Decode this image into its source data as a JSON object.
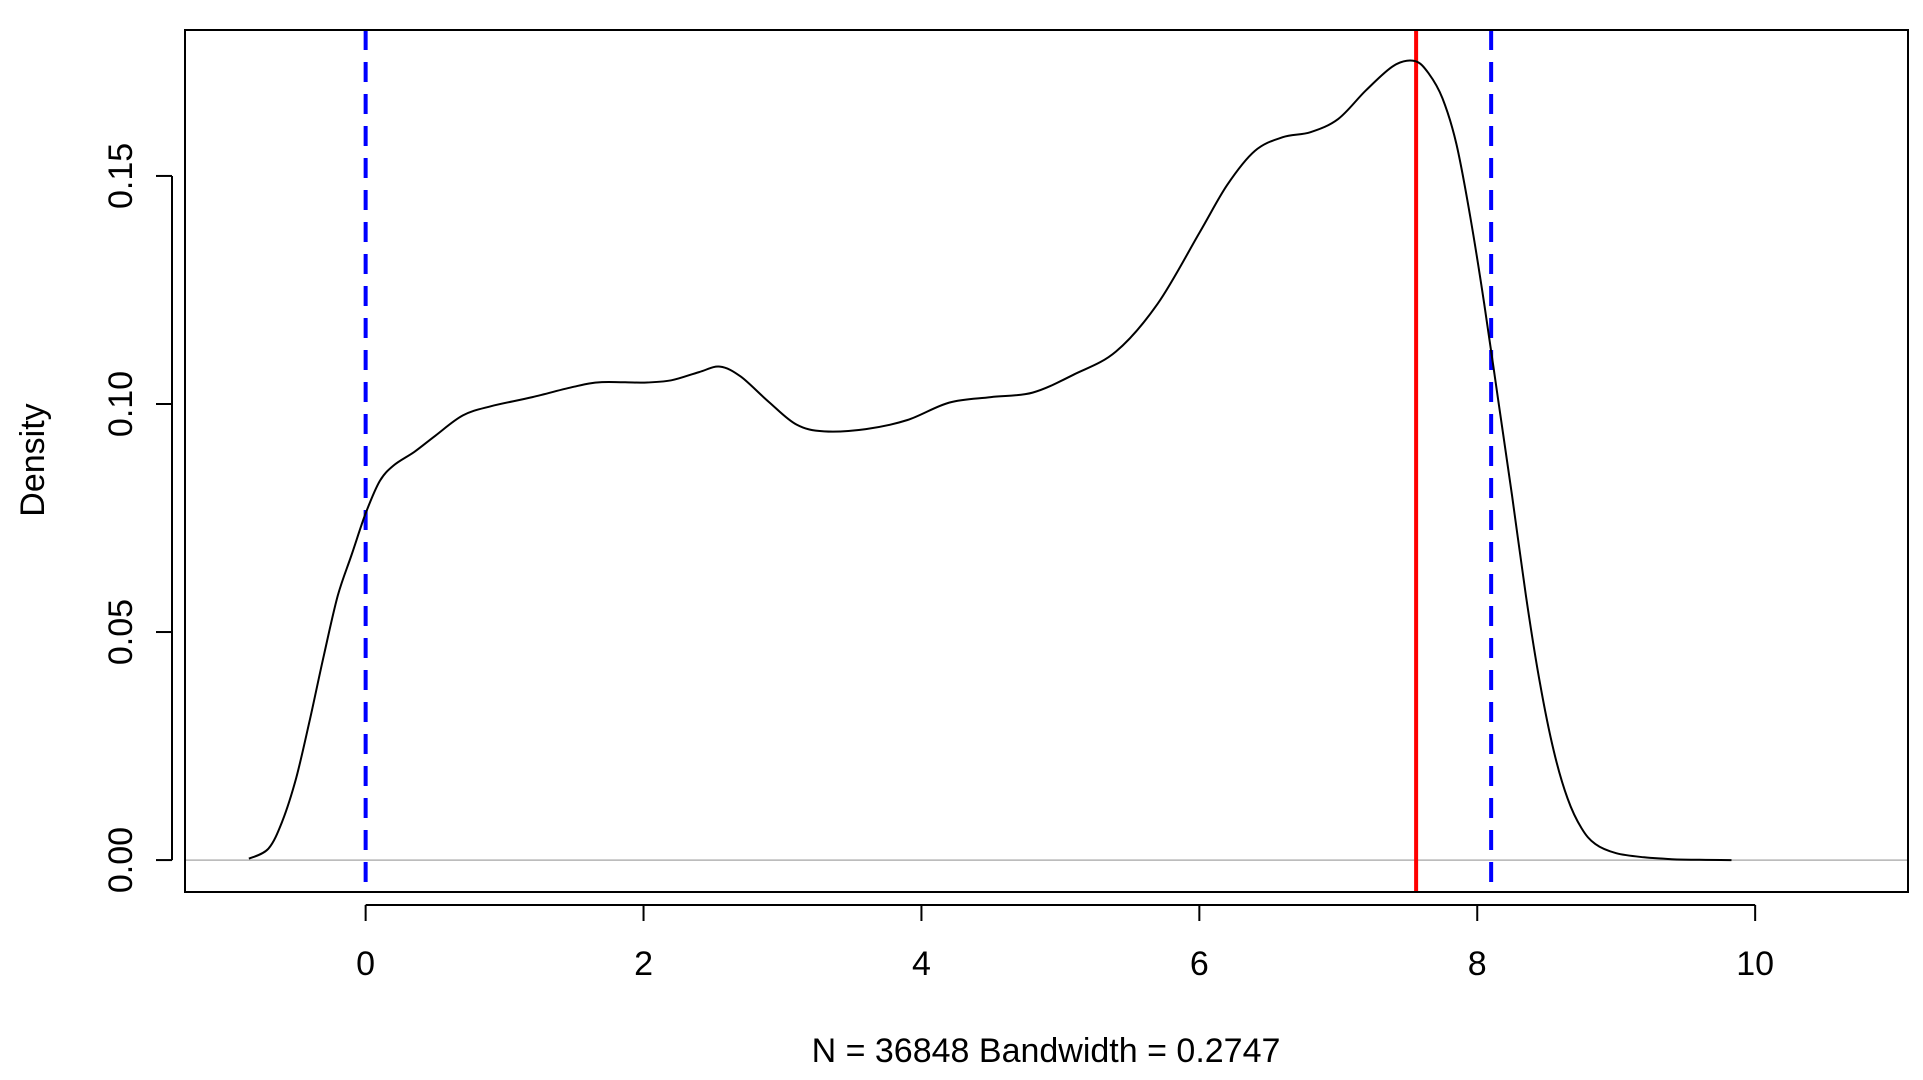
{
  "chart_data": {
    "type": "line",
    "title": "",
    "xlabel": "N = 36848   Bandwidth = 0.2747",
    "ylabel": "Density",
    "xlim": [
      -1.3,
      11.1
    ],
    "ylim": [
      -0.007,
      0.182
    ],
    "x_ticks": [
      0,
      2,
      4,
      6,
      8,
      10
    ],
    "x_tick_labels": [
      "0",
      "2",
      "4",
      "6",
      "8",
      "10"
    ],
    "y_ticks": [
      0.0,
      0.05,
      0.1,
      0.15
    ],
    "y_tick_labels": [
      "0.00",
      "0.05",
      "0.10",
      "0.15"
    ],
    "grid": false,
    "legend": "none",
    "series": [
      {
        "color": "#000000",
        "x": [
          -0.84,
          -0.7,
          -0.6,
          -0.5,
          -0.4,
          -0.3,
          -0.2,
          -0.1,
          0.0,
          0.1,
          0.2,
          0.35,
          0.5,
          0.7,
          0.9,
          1.2,
          1.5,
          1.7,
          2.0,
          2.2,
          2.4,
          2.55,
          2.7,
          2.9,
          3.1,
          3.3,
          3.6,
          3.9,
          4.2,
          4.5,
          4.8,
          5.1,
          5.4,
          5.7,
          6.0,
          6.2,
          6.4,
          6.6,
          6.8,
          7.0,
          7.2,
          7.4,
          7.55,
          7.65,
          7.75,
          7.85,
          7.95,
          8.05,
          8.15,
          8.25,
          8.35,
          8.45,
          8.55,
          8.65,
          8.75,
          8.85,
          9.0,
          9.2,
          9.4,
          9.6,
          9.83
        ],
        "y": [
          0.0003,
          0.0025,
          0.0085,
          0.018,
          0.031,
          0.045,
          0.058,
          0.067,
          0.076,
          0.083,
          0.0865,
          0.0895,
          0.093,
          0.0975,
          0.0995,
          0.1015,
          0.1038,
          0.1048,
          0.1047,
          0.1052,
          0.107,
          0.1082,
          0.106,
          0.1005,
          0.0955,
          0.094,
          0.0945,
          0.0965,
          0.1003,
          0.1015,
          0.1025,
          0.1065,
          0.1115,
          0.122,
          0.1375,
          0.148,
          0.1555,
          0.1585,
          0.1596,
          0.1625,
          0.1688,
          0.1742,
          0.1752,
          0.1725,
          0.167,
          0.157,
          0.141,
          0.122,
          0.101,
          0.08,
          0.058,
          0.039,
          0.024,
          0.0135,
          0.007,
          0.0035,
          0.0015,
          0.0006,
          0.0002,
          5e-05,
          0.0
        ]
      }
    ],
    "reference_lines": [
      {
        "orientation": "horizontal",
        "value": 0.0,
        "color": "#b3b3b3",
        "style": "solid"
      },
      {
        "orientation": "vertical",
        "value": 0.0,
        "color": "#0000ff",
        "style": "dashed"
      },
      {
        "orientation": "vertical",
        "value": 8.1,
        "color": "#0000ff",
        "style": "dashed"
      },
      {
        "orientation": "vertical",
        "value": 7.56,
        "color": "#ff0000",
        "style": "solid"
      }
    ]
  }
}
